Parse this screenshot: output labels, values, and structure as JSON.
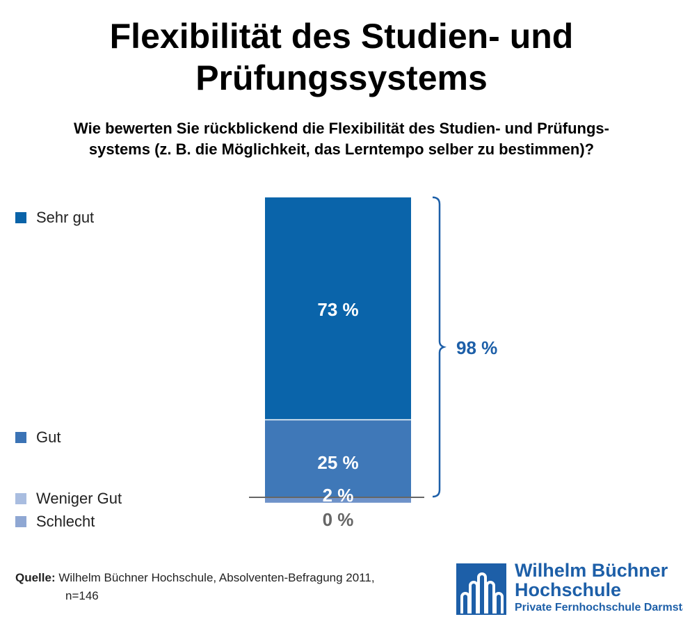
{
  "chart_data": {
    "type": "bar",
    "stacked": true,
    "title": "Flexibilität des Studien- und Prüfungssystems",
    "title_lines": [
      "Flexibilität des Studien- und",
      "Prüfungssystems"
    ],
    "subtitle_lines": [
      "Wie bewerten Sie rückblickend die Flexibilität des Studien- und Prüfungs-",
      "systems (z. B. die Möglichkeit, das Lerntempo selber zu bestimmen)?"
    ],
    "series": [
      {
        "name": "Sehr gut",
        "value": 73,
        "label": "73 %",
        "color": "#0a64aa",
        "legend_color": "#0a63a8"
      },
      {
        "name": "Gut",
        "value": 25,
        "label": "25 %",
        "color": "#3f78b8",
        "legend_color": "#3b73b5"
      },
      {
        "name": "Weniger Gut",
        "value": 2,
        "label": "2 %",
        "color": "#6e92c9",
        "legend_color": "#a9bde0"
      },
      {
        "name": "Schlecht",
        "value": 0,
        "label": "0 %",
        "color": "#9fb4dc",
        "legend_color": "#8fa7d3"
      }
    ],
    "bracket": {
      "value": 98,
      "label": "98 %",
      "color": "#1d5fa8"
    },
    "unit": "%"
  },
  "source": {
    "label": "Quelle:",
    "text": "Wilhelm Büchner Hochschule, Absolventen-Befragung 2011,",
    "n": "n=146"
  },
  "logo": {
    "line1": "Wilhelm Büchner",
    "line2": "Hochschule",
    "line3": "Private Fernhochschule Darmstadt"
  }
}
